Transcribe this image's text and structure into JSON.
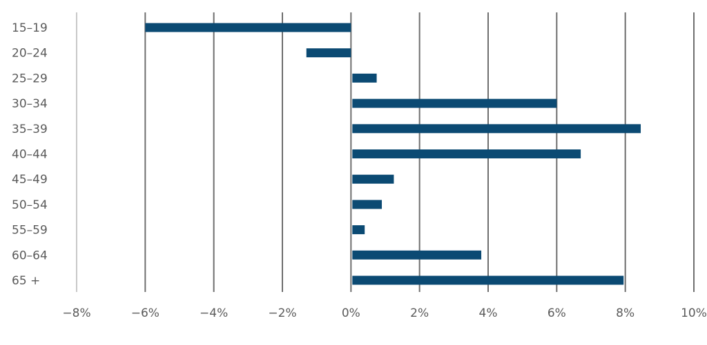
{
  "chart_data": {
    "type": "bar",
    "orientation": "horizontal",
    "title": "",
    "xlabel": "",
    "ylabel": "",
    "categories": [
      "15–19",
      "20–24",
      "25–29",
      "30–34",
      "35–39",
      "40–44",
      "45–49",
      "50–54",
      "55–59",
      "60–64",
      "65 +"
    ],
    "values": [
      -6.0,
      -1.3,
      0.75,
      6.0,
      8.45,
      6.7,
      1.25,
      0.9,
      0.4,
      3.8,
      7.95
    ],
    "xlim": [
      -8,
      10
    ],
    "ticks": [
      -8,
      -6,
      -4,
      -2,
      0,
      2,
      4,
      6,
      8,
      10
    ],
    "tick_labels": [
      "−8%",
      "−6%",
      "−4%",
      "−2%",
      "0%",
      "2%",
      "4%",
      "6%",
      "8%",
      "10%"
    ],
    "grid": "vertical",
    "legend": "none",
    "colors": {
      "bar": "#0b4a73",
      "grid": "#6e6e6e",
      "axis": "#c8c8c8",
      "text": "#5a5a5a"
    }
  }
}
